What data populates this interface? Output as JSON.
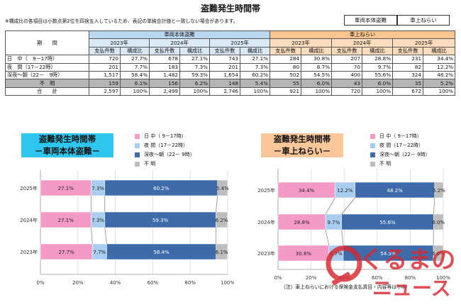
{
  "page_title": "盗難発生時間帯",
  "note": "※構成比の各項目は小数点第2位を四捨五入しているため、表記の単純合計値と一致しない場合があります。",
  "legend_boxes": [
    "車両本体盗難",
    "車上ねらい"
  ],
  "table": {
    "period_header": "期　　間",
    "groups": [
      "車両本体盗難",
      "車上ねらい"
    ],
    "years": [
      "2023年",
      "2024年",
      "2025年"
    ],
    "sub_headers": [
      "支払件数",
      "構成比"
    ],
    "rows": [
      {
        "label": "日　中（　9－17時）",
        "cells": [
          "720",
          "27.7%",
          "678",
          "27.1%",
          "743",
          "27.1%",
          "284",
          "30.8%",
          "207",
          "28.8%",
          "231",
          "34.4%"
        ]
      },
      {
        "label": "夜　間（17－22時）",
        "cells": [
          "201",
          "7.7%",
          "183",
          "7.3%",
          "201",
          "7.3%",
          "80",
          "8.7%",
          "70",
          "9.7%",
          "82",
          "12.2%"
        ]
      },
      {
        "label": "深夜～朝（22－　9時）",
        "cells": [
          "1,517",
          "58.4%",
          "1,482",
          "59.3%",
          "1,654",
          "60.2%",
          "502",
          "54.5%",
          "400",
          "55.6%",
          "324",
          "48.2%"
        ]
      },
      {
        "label": "不　明",
        "cells": [
          "159",
          "6.1%",
          "156",
          "6.2%",
          "148",
          "5.4%",
          "55",
          "6.0%",
          "43",
          "6.0%",
          "35",
          "5.2%"
        ]
      },
      {
        "label": "合　　計",
        "cells": [
          "2,597",
          "100%",
          "2,499",
          "100%",
          "2,746",
          "100%",
          "921",
          "100%",
          "720",
          "100%",
          "672",
          "100%"
        ]
      }
    ]
  },
  "chart_legend": [
    "日 中（ 9－17時）",
    "夜 間（17－22時）",
    "深夜～朝（22－ 9時）",
    "不 明"
  ],
  "colors": {
    "day": "#f49ac6",
    "evening": "#a9cdf0",
    "night": "#3e6cab",
    "unknown": "#bdbdbd",
    "vehicle_title_bg": "#2ec5ee",
    "cargo_title_bg": "#f9c79a"
  },
  "chart_data": [
    {
      "type": "bar",
      "orientation": "horizontal",
      "stacked": true,
      "title": "盗難発生時間帯",
      "subtitle": "－車両本体盗難－",
      "categories": [
        "2025年",
        "2024年",
        "2023年"
      ],
      "series": [
        {
          "name": "日 中（ 9－17時）",
          "values": [
            27.1,
            27.1,
            27.7
          ]
        },
        {
          "name": "夜 間（17－22時）",
          "values": [
            7.3,
            7.3,
            7.7
          ]
        },
        {
          "name": "深夜～朝（22－ 9時）",
          "values": [
            60.2,
            59.3,
            58.4
          ]
        },
        {
          "name": "不 明",
          "values": [
            5.4,
            6.2,
            6.1
          ]
        }
      ],
      "xlim": [
        0,
        100
      ],
      "xticks": [
        "0%",
        "20%",
        "40%",
        "60%",
        "80%",
        "100%"
      ],
      "legend": "top-right"
    },
    {
      "type": "bar",
      "orientation": "horizontal",
      "stacked": true,
      "title": "盗難発生時間帯",
      "subtitle": "－車上ねらい－",
      "categories": [
        "2025年",
        "2024年",
        "2023年"
      ],
      "series": [
        {
          "name": "日 中（ 9－17時）",
          "values": [
            34.4,
            28.8,
            30.8
          ]
        },
        {
          "name": "夜 間（17－22時）",
          "values": [
            12.2,
            9.7,
            8.7
          ]
        },
        {
          "name": "深夜～朝（22－ 9時）",
          "values": [
            48.2,
            55.6,
            54.5
          ]
        },
        {
          "name": "不 明",
          "values": [
            5.2,
            6.0,
            6.0
          ]
        }
      ],
      "xlim": [
        0,
        100
      ],
      "xticks": [
        "0%",
        "20%",
        "40%",
        "60%",
        "80%",
        "100%"
      ],
      "legend": "top-right"
    }
  ],
  "footnote": "（注）車上ねらいにおける保険金支払貨目・内容等は不明",
  "watermark": {
    "line1": "くるまの",
    "line2": "ニュース"
  }
}
